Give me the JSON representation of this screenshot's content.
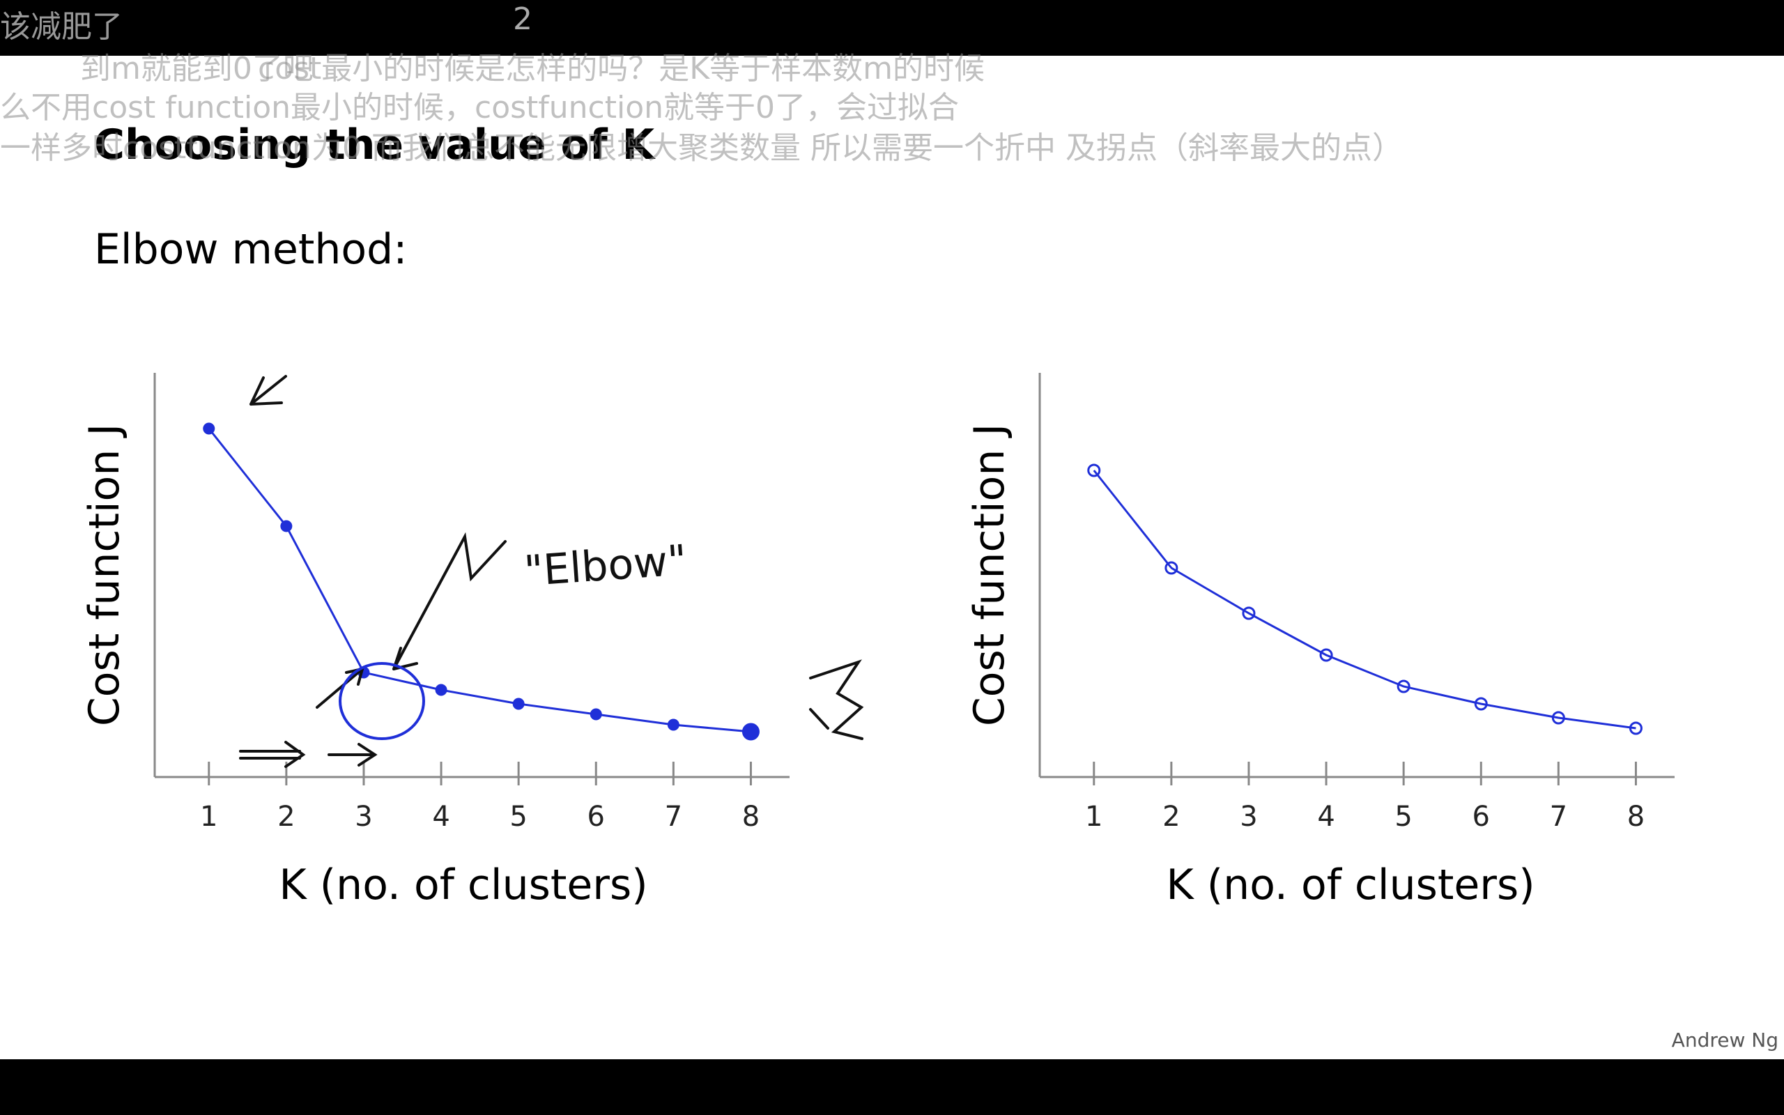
{
  "slide": {
    "title": "Choosing the value of K",
    "subtitle": "Elbow method:",
    "elbow_annotation": "\"Elbow\"",
    "author": "Andrew Ng"
  },
  "chart_data": [
    {
      "type": "line",
      "ylabel": "Cost function J",
      "xlabel": "K (no. of clusters)",
      "x": [
        1,
        2,
        3,
        4,
        5,
        6,
        7,
        8
      ],
      "series": [
        {
          "values": [
            10.0,
            7.2,
            3.0,
            2.5,
            2.1,
            1.8,
            1.5,
            1.3
          ]
        }
      ],
      "xlim": [
        0.3,
        8.5
      ],
      "ylim": [
        0,
        11.6
      ],
      "yticks": "none",
      "color": "#1f2fd8"
    },
    {
      "type": "line",
      "ylabel": "Cost function J",
      "xlabel": "K (no. of clusters)",
      "x": [
        1,
        2,
        3,
        4,
        5,
        6,
        7,
        8
      ],
      "series": [
        {
          "values": [
            8.8,
            6.0,
            4.7,
            3.5,
            2.6,
            2.1,
            1.7,
            1.4
          ]
        }
      ],
      "xlim": [
        0.3,
        8.5
      ],
      "ylim": [
        0,
        11.6
      ],
      "yticks": "none",
      "color": "#1f2fd8"
    }
  ],
  "overlay": {
    "top_count": "2",
    "danmaku": [
      "该减肥了",
      "到m就能到0了吧",
      "cost最小的时候是怎样的吗？是K等于样本数m的时候",
      "么不用cost function最小的时候，costfunction就等于0了，会过拟合",
      "一样多时costfunction为0 而我们总不能无限增大聚类数量 所以需要一个折中 及拐点（斜率最大的点）"
    ]
  },
  "player": {
    "play_icon": "play-icon"
  },
  "colors": {
    "ink": "#1f2fd8",
    "background": "#ffffff",
    "bars": "#000000"
  }
}
